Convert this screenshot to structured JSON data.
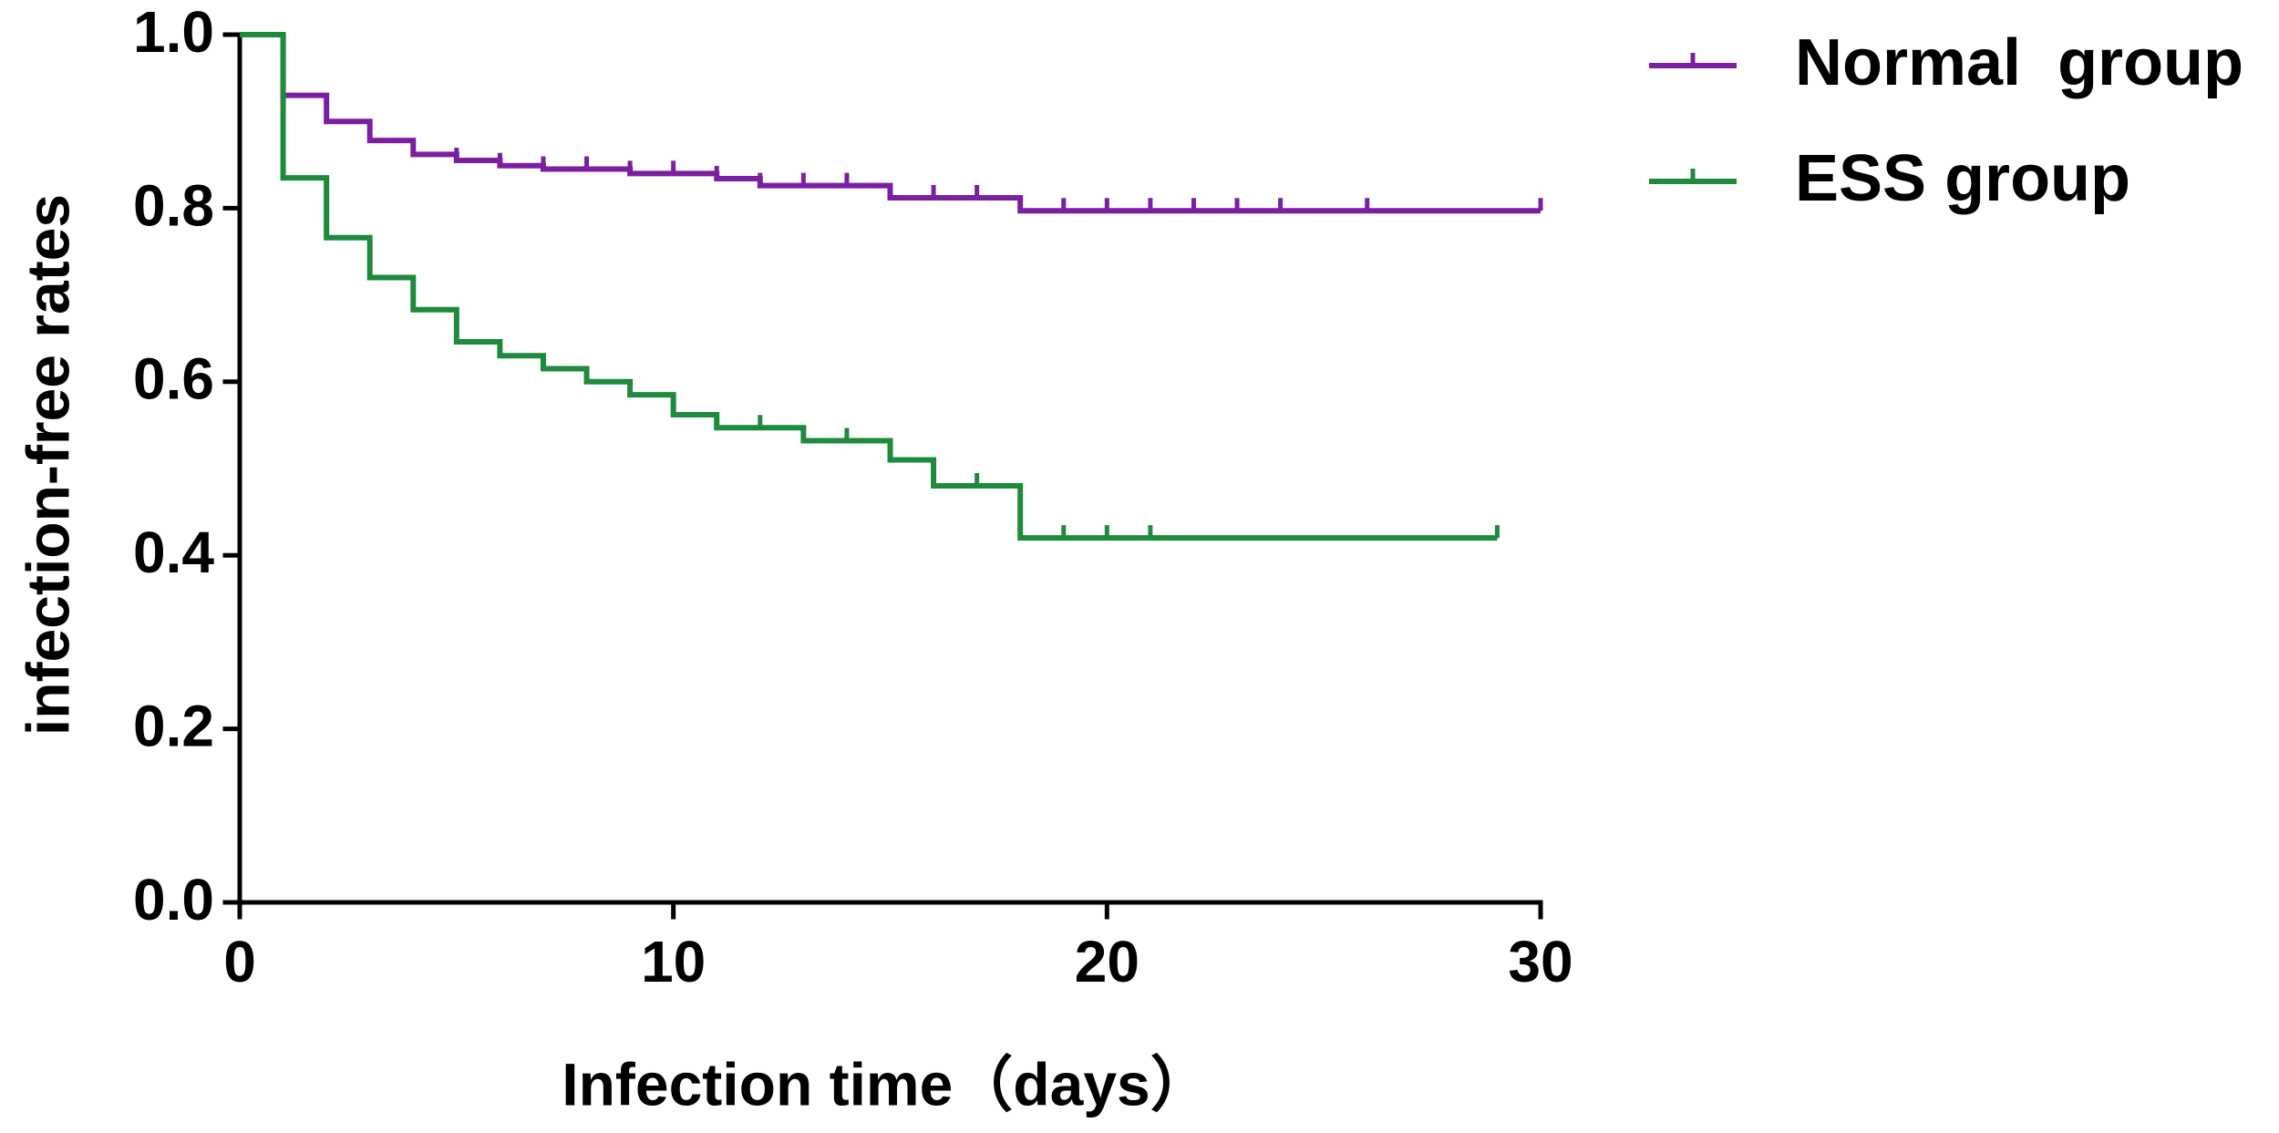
{
  "chart_data": {
    "type": "step",
    "x_label": "Infection time（days）",
    "y_label": "infection-free rates",
    "xlim": [
      0,
      30
    ],
    "xticks": [
      0,
      10,
      20,
      30
    ],
    "ylim": [
      0,
      1
    ],
    "yticks": [
      {
        "value": 0,
        "label": "0.0"
      },
      0.2,
      0.4,
      0.6,
      0.8,
      {
        "value": 1,
        "label": "1.0"
      }
    ],
    "series": [
      {
        "name": "Normal  group",
        "color": "#7b1fa2",
        "x": [
          0,
          1,
          2,
          3,
          4,
          5,
          6,
          7,
          9,
          11,
          12,
          15,
          18,
          30
        ],
        "values": [
          1.0,
          0.93,
          0.9,
          0.878,
          0.862,
          0.855,
          0.849,
          0.845,
          0.84,
          0.834,
          0.826,
          0.812,
          0.797,
          0.797
        ],
        "censored": [
          4,
          5,
          6,
          7,
          8,
          9,
          10,
          11,
          12,
          13,
          14,
          15,
          16,
          17,
          19,
          20,
          21,
          22,
          23,
          24,
          26,
          30
        ]
      },
      {
        "name": "ESS group",
        "color": "#1e8a3c",
        "x": [
          0,
          1,
          2,
          3,
          4,
          5,
          6,
          7,
          8,
          9,
          10,
          11,
          13,
          15,
          16,
          18,
          29
        ],
        "values": [
          1.0,
          0.835,
          0.766,
          0.72,
          0.683,
          0.646,
          0.63,
          0.615,
          0.6,
          0.585,
          0.562,
          0.547,
          0.532,
          0.51,
          0.48,
          0.42,
          0.42
        ],
        "censored": [
          6,
          9,
          12,
          14,
          17,
          19,
          20,
          21,
          29
        ]
      }
    ]
  }
}
